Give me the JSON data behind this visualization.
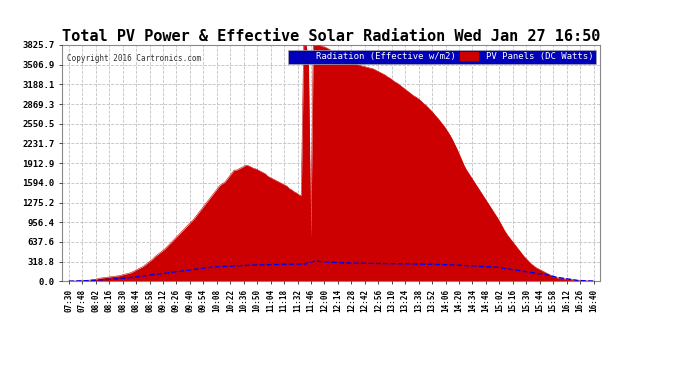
{
  "title": "Total PV Power & Effective Solar Radiation Wed Jan 27 16:50",
  "copyright": "Copyright 2016 Cartronics.com",
  "legend_labels": [
    "Radiation (Effective w/m2)",
    "PV Panels (DC Watts)"
  ],
  "legend_color_rad": "#0000bb",
  "legend_color_pv": "#cc0000",
  "y_ticks": [
    0.0,
    318.8,
    637.6,
    956.4,
    1275.2,
    1594.0,
    1912.9,
    2231.7,
    2550.5,
    2869.3,
    3188.1,
    3506.9,
    3825.7
  ],
  "ylim": [
    0,
    3825.7
  ],
  "background_color": "#ffffff",
  "plot_bg_color": "#ffffff",
  "grid_color": "#bbbbbb",
  "red_color": "#cc0000",
  "blue_color": "#0000ee",
  "title_fontsize": 11,
  "time_labels": [
    "07:30",
    "07:48",
    "08:02",
    "08:16",
    "08:30",
    "08:44",
    "08:58",
    "09:12",
    "09:26",
    "09:40",
    "09:54",
    "10:08",
    "10:22",
    "10:36",
    "10:50",
    "11:04",
    "11:18",
    "11:32",
    "11:46",
    "12:00",
    "12:14",
    "12:28",
    "12:42",
    "12:56",
    "13:10",
    "13:24",
    "13:38",
    "13:52",
    "14:06",
    "14:20",
    "14:34",
    "14:48",
    "15:02",
    "15:16",
    "15:30",
    "15:44",
    "15:58",
    "16:12",
    "16:26",
    "16:40"
  ],
  "pv_data": [
    2,
    2,
    3,
    4,
    5,
    6,
    8,
    10,
    15,
    20,
    25,
    30,
    40,
    50,
    55,
    60,
    65,
    70,
    75,
    80,
    85,
    90,
    100,
    110,
    120,
    130,
    140,
    160,
    180,
    200,
    220,
    240,
    270,
    300,
    330,
    360,
    400,
    430,
    460,
    490,
    520,
    560,
    600,
    640,
    680,
    720,
    760,
    800,
    840,
    880,
    920,
    960,
    1000,
    1050,
    1100,
    1150,
    1200,
    1250,
    1300,
    1350,
    1400,
    1450,
    1500,
    1550,
    1580,
    1600,
    1650,
    1700,
    1750,
    1800,
    1800,
    1820,
    1840,
    1860,
    1880,
    1870,
    1850,
    1830,
    1820,
    1800,
    1780,
    1760,
    1740,
    1700,
    1680,
    1660,
    1640,
    1620,
    1600,
    1580,
    1560,
    1540,
    1500,
    1480,
    1450,
    1430,
    1400,
    1390,
    3820,
    3825,
    3600,
    700,
    3820,
    3825,
    3820,
    3815,
    3800,
    3790,
    3770,
    3750,
    3720,
    3700,
    3680,
    3660,
    3640,
    3620,
    3600,
    3580,
    3560,
    3540,
    3520,
    3500,
    3490,
    3480,
    3470,
    3460,
    3450,
    3440,
    3420,
    3400,
    3380,
    3360,
    3340,
    3310,
    3290,
    3260,
    3230,
    3210,
    3180,
    3150,
    3120,
    3090,
    3060,
    3030,
    3000,
    2980,
    2950,
    2920,
    2880,
    2850,
    2810,
    2770,
    2730,
    2680,
    2640,
    2590,
    2540,
    2490,
    2430,
    2370,
    2300,
    2220,
    2140,
    2050,
    1960,
    1870,
    1800,
    1740,
    1680,
    1620,
    1560,
    1500,
    1440,
    1380,
    1320,
    1260,
    1200,
    1140,
    1080,
    1020,
    950,
    880,
    810,
    750,
    700,
    650,
    600,
    550,
    500,
    450,
    400,
    360,
    320,
    280,
    250,
    220,
    200,
    180,
    160,
    140,
    120,
    100,
    80,
    65,
    55,
    50,
    45,
    40,
    35,
    30,
    25,
    20,
    15,
    12,
    10,
    8,
    6,
    5,
    4,
    3
  ],
  "radiation_data": [
    2,
    2,
    3,
    4,
    4,
    5,
    6,
    8,
    10,
    12,
    14,
    16,
    18,
    20,
    22,
    25,
    28,
    30,
    33,
    36,
    39,
    42,
    45,
    48,
    52,
    56,
    60,
    65,
    70,
    75,
    80,
    85,
    90,
    95,
    100,
    105,
    110,
    115,
    120,
    125,
    130,
    135,
    140,
    145,
    150,
    155,
    160,
    165,
    170,
    175,
    180,
    185,
    190,
    195,
    200,
    205,
    210,
    215,
    220,
    225,
    230,
    232,
    234,
    236,
    238,
    240,
    242,
    244,
    246,
    248,
    250,
    252,
    254,
    256,
    258,
    260,
    261,
    262,
    263,
    264,
    265,
    266,
    267,
    268,
    269,
    270,
    270,
    271,
    272,
    273,
    274,
    275,
    276,
    276,
    277,
    278,
    279,
    279,
    280,
    280,
    320,
    310,
    320,
    330,
    325,
    320,
    315,
    312,
    310,
    308,
    306,
    304,
    302,
    300,
    299,
    298,
    297,
    296,
    295,
    294,
    293,
    292,
    292,
    291,
    290,
    290,
    289,
    289,
    288,
    288,
    287,
    287,
    286,
    286,
    285,
    285,
    284,
    284,
    283,
    283,
    282,
    282,
    281,
    280,
    280,
    279,
    278,
    278,
    277,
    276,
    276,
    275,
    274,
    273,
    272,
    271,
    270,
    269,
    268,
    267,
    265,
    263,
    261,
    258,
    256,
    254,
    252,
    250,
    248,
    246,
    244,
    242,
    240,
    238,
    236,
    234,
    232,
    230,
    228,
    226,
    220,
    214,
    208,
    202,
    196,
    190,
    184,
    178,
    172,
    166,
    160,
    154,
    148,
    142,
    136,
    130,
    124,
    118,
    112,
    106,
    100,
    90,
    80,
    70,
    62,
    56,
    50,
    44,
    38,
    32,
    26,
    20,
    15,
    12,
    10,
    8,
    6,
    5,
    4,
    3
  ]
}
